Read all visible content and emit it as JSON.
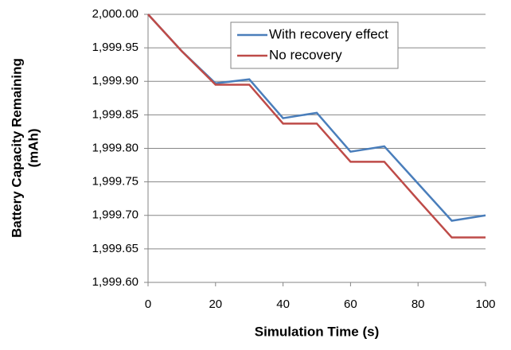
{
  "chart_data": {
    "type": "line",
    "xlabel": "Simulation Time (s)",
    "ylabel": [
      "Battery Capacity Remaining",
      "(mAh)"
    ],
    "x": [
      0,
      10,
      20,
      30,
      40,
      50,
      60,
      70,
      80,
      90,
      100
    ],
    "series": [
      {
        "name": "With recovery effect",
        "color": "#4a7ebb",
        "values": [
          2000.0,
          1999.945,
          1999.897,
          1999.903,
          1999.845,
          1999.853,
          1999.795,
          1999.803,
          1999.7475,
          1999.692,
          1999.7
        ]
      },
      {
        "name": "No recovery",
        "color": "#be4b48",
        "values": [
          2000.0,
          1999.945,
          1999.895,
          1999.895,
          1999.837,
          1999.837,
          1999.78,
          1999.78,
          1999.723,
          1999.667,
          1999.667
        ]
      }
    ],
    "xlim": [
      0,
      100
    ],
    "xticks": [
      0,
      20,
      40,
      60,
      80,
      100
    ],
    "ylim": [
      1999.6,
      2000.0
    ],
    "yticks": [
      {
        "value": 1999.6,
        "label": "1,999.60"
      },
      {
        "value": 1999.65,
        "label": "1,999.65"
      },
      {
        "value": 1999.7,
        "label": "1,999.70"
      },
      {
        "value": 1999.75,
        "label": "1,999.75"
      },
      {
        "value": 1999.8,
        "label": "1,999.80"
      },
      {
        "value": 1999.85,
        "label": "1,999.85"
      },
      {
        "value": 1999.9,
        "label": "1,999.90"
      },
      {
        "value": 1999.95,
        "label": "1,999.95"
      },
      {
        "value": 2000.0,
        "label": "2,000.00"
      }
    ],
    "grid": true,
    "legend": "upper right"
  }
}
